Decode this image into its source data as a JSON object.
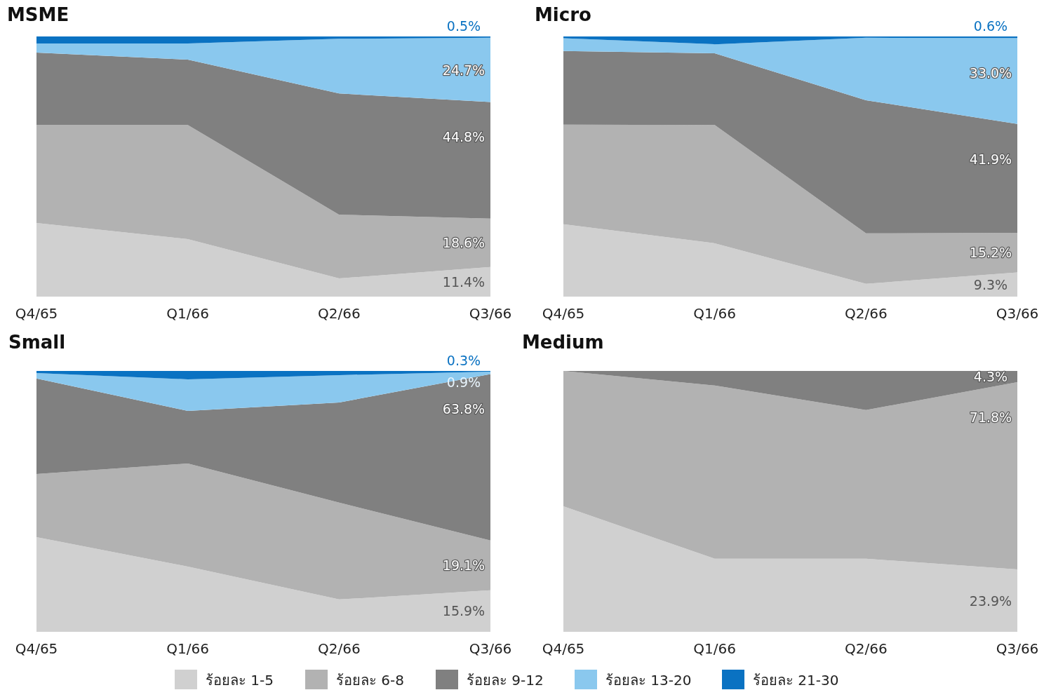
{
  "chart_data": [
    {
      "type": "area",
      "title": "MSME",
      "stacked": true,
      "categories": [
        "Q4/65",
        "Q1/66",
        "Q2/66",
        "Q3/66"
      ],
      "legend": "bottom",
      "series": [
        {
          "name": "ร้อยละ 1-5",
          "color": "#d0d0d0",
          "values": [
            28.3,
            22.1,
            7.0,
            11.4
          ],
          "value_labels": [
            null,
            null,
            null,
            "11.4%"
          ]
        },
        {
          "name": "ร้อยละ 6-8",
          "color": "#b2b2b2",
          "values": [
            37.7,
            43.9,
            24.5,
            18.6
          ],
          "value_labels": [
            null,
            null,
            null,
            "18.6%"
          ]
        },
        {
          "name": "ร้อยละ 9-12",
          "color": "#808080",
          "values": [
            27.8,
            25.1,
            46.6,
            44.8
          ],
          "value_labels": [
            null,
            null,
            null,
            "44.8%"
          ]
        },
        {
          "name": "ร้อยละ 13-20",
          "color": "#8ac8ee",
          "values": [
            3.5,
            6.2,
            21.0,
            24.7
          ],
          "value_labels": [
            null,
            null,
            null,
            "24.7%"
          ]
        },
        {
          "name": "ร้อยละ 21-30",
          "color": "#0a72c2",
          "values": [
            2.7,
            2.7,
            0.9,
            0.5
          ],
          "value_labels": [
            null,
            null,
            null,
            "0.5%"
          ]
        }
      ]
    },
    {
      "type": "area",
      "title": "Micro",
      "stacked": true,
      "categories": [
        "Q4/65",
        "Q1/66",
        "Q2/66",
        "Q3/66"
      ],
      "legend": "bottom",
      "series": [
        {
          "name": "ร้อยละ 1-5",
          "color": "#d0d0d0",
          "values": [
            27.8,
            20.5,
            4.9,
            9.3
          ],
          "value_labels": [
            null,
            null,
            null,
            "9.3%"
          ]
        },
        {
          "name": "ร้อยละ 6-8",
          "color": "#b2b2b2",
          "values": [
            38.3,
            45.5,
            19.4,
            15.2
          ],
          "value_labels": [
            null,
            null,
            null,
            "15.2%"
          ]
        },
        {
          "name": "ร้อยละ 9-12",
          "color": "#808080",
          "values": [
            28.3,
            27.5,
            51.2,
            41.9
          ],
          "value_labels": [
            null,
            null,
            null,
            "41.9%"
          ]
        },
        {
          "name": "ร้อยละ 13-20",
          "color": "#8ac8ee",
          "values": [
            4.9,
            3.5,
            24.0,
            33.0
          ],
          "value_labels": [
            null,
            null,
            null,
            "33.0%"
          ]
        },
        {
          "name": "ร้อยละ 21-30",
          "color": "#0a72c2",
          "values": [
            0.7,
            3.0,
            0.5,
            0.6
          ],
          "value_labels": [
            null,
            null,
            null,
            "0.6%"
          ]
        }
      ]
    },
    {
      "type": "area",
      "title": "Small",
      "stacked": true,
      "categories": [
        "Q4/65",
        "Q1/66",
        "Q2/66",
        "Q3/66"
      ],
      "legend": "bottom",
      "series": [
        {
          "name": "ร้อยละ 1-5",
          "color": "#d0d0d0",
          "values": [
            36.3,
            25.0,
            12.4,
            15.9
          ],
          "value_labels": [
            null,
            null,
            null,
            "15.9%"
          ]
        },
        {
          "name": "ร้อยละ 6-8",
          "color": "#b2b2b2",
          "values": [
            24.2,
            39.5,
            37.1,
            19.1
          ],
          "value_labels": [
            null,
            null,
            null,
            "19.1%"
          ]
        },
        {
          "name": "ร้อยละ 9-12",
          "color": "#808080",
          "values": [
            36.6,
            20.2,
            38.4,
            63.8
          ],
          "value_labels": [
            null,
            null,
            null,
            "63.8%"
          ]
        },
        {
          "name": "ร้อยละ 13-20",
          "color": "#8ac8ee",
          "values": [
            2.1,
            12.1,
            10.5,
            0.9
          ],
          "value_labels": [
            null,
            null,
            null,
            "0.9%"
          ]
        },
        {
          "name": "ร้อยละ 21-30",
          "color": "#0a72c2",
          "values": [
            0.8,
            3.2,
            1.6,
            0.3
          ],
          "value_labels": [
            null,
            null,
            null,
            "0.3%"
          ]
        }
      ]
    },
    {
      "type": "area",
      "title": "Medium",
      "stacked": true,
      "categories": [
        "Q4/65",
        "Q1/66",
        "Q2/66",
        "Q3/66"
      ],
      "legend": "bottom",
      "series": [
        {
          "name": "ร้อยละ 1-5",
          "color": "#d0d0d0",
          "values": [
            48.1,
            28.0,
            28.0,
            23.9
          ],
          "value_labels": [
            null,
            null,
            null,
            "23.9%"
          ]
        },
        {
          "name": "ร้อยละ 6-8",
          "color": "#b2b2b2",
          "values": [
            51.9,
            66.4,
            57.0,
            71.8
          ],
          "value_labels": [
            null,
            null,
            null,
            "71.8%"
          ]
        },
        {
          "name": "ร้อยละ 9-12",
          "color": "#808080",
          "values": [
            0,
            5.6,
            15.0,
            4.3
          ],
          "value_labels": [
            null,
            null,
            null,
            "4.3%"
          ]
        }
      ]
    }
  ]
}
